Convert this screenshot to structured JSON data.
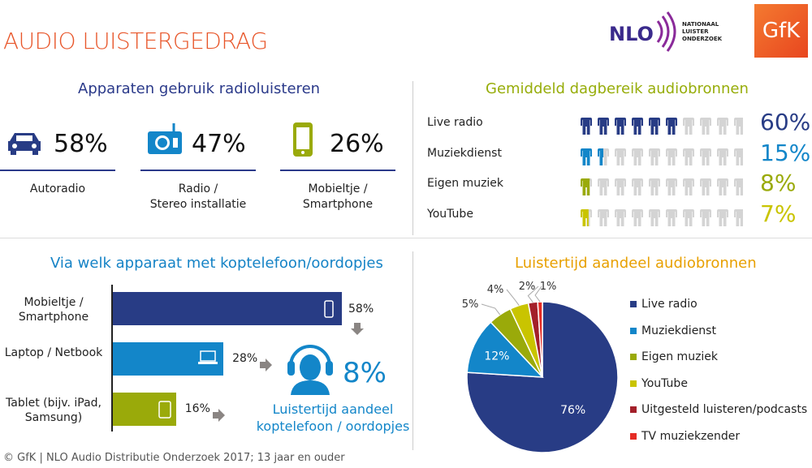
{
  "header": {
    "title": "AUDIO LUISTERGEDRAG",
    "logo_nlo": "NLO",
    "logo_nlo_sub": "NATIONAAL LUISTER ONDERZOEK",
    "logo_gfk": "GfK"
  },
  "colors": {
    "navy": "#283c85",
    "blue": "#1386c9",
    "olive": "#9aaa0a",
    "yellow": "#c9c400",
    "darkred": "#a3202a",
    "red": "#e52c25",
    "grey": "#d4d4d4",
    "orange": "#e8a000"
  },
  "devices": {
    "title": "Apparaten gebruik radioluisteren",
    "items": [
      {
        "icon": "car-icon",
        "value": "58%",
        "label1": "Autoradio",
        "label2": ""
      },
      {
        "icon": "radio-icon",
        "value": "47%",
        "label1": "Radio /",
        "label2": "Stereo installatie"
      },
      {
        "icon": "smartphone-icon",
        "value": "26%",
        "label1": "Mobieltje /",
        "label2": "Smartphone"
      }
    ]
  },
  "reach": {
    "title": "Gemiddeld dagbereik audiobronnen",
    "rows": [
      {
        "label": "Live radio",
        "value": "60%",
        "percent": 60,
        "color": "#283c85"
      },
      {
        "label": "Muziekdienst",
        "value": "15%",
        "percent": 15,
        "color": "#1386c9"
      },
      {
        "label": "Eigen muziek",
        "value": "8%",
        "percent": 8,
        "color": "#9aaa0a"
      },
      {
        "label": "YouTube",
        "value": "7%",
        "percent": 7,
        "color": "#c9c400"
      }
    ]
  },
  "chart_data": [
    {
      "type": "bar",
      "title": "Via welk apparaat met koptelefoon/oordopjes",
      "categories": [
        "Mobieltje / Smartphone",
        "Laptop / Netbook",
        "Tablet (bijv. iPad, Samsung)"
      ],
      "values": [
        58,
        28,
        16
      ],
      "value_labels": [
        "58%",
        "28%",
        "16%"
      ],
      "colors": [
        "#283c85",
        "#1386c9",
        "#9aaa0a"
      ],
      "orientation": "horizontal"
    },
    {
      "type": "pie",
      "title": "Luistertijd aandeel audiobronnen",
      "categories": [
        "Live radio",
        "Muziekdienst",
        "Eigen muziek",
        "YouTube",
        "Uitgesteld luisteren/podcasts",
        "TV muziekzender"
      ],
      "values": [
        76,
        12,
        5,
        4,
        2,
        1
      ],
      "value_labels": [
        "76%",
        "12%",
        "5%",
        "4%",
        "2%",
        "1%"
      ],
      "colors": [
        "#283c85",
        "#1386c9",
        "#9aaa0a",
        "#c9c400",
        "#a3202a",
        "#e52c25"
      ],
      "legend": "right"
    }
  ],
  "bars": {
    "labels": [
      [
        "Mobieltje /",
        "Smartphone"
      ],
      [
        "Laptop / Netbook",
        ""
      ],
      [
        "Tablet (bijv. iPad,",
        "Samsung)"
      ]
    ]
  },
  "headphone": {
    "value": "8%",
    "text1": "Luistertijd aandeel",
    "text2": "koptelefoon / oordopjes"
  },
  "footer": "© GfK | NLO Audio Distributie Onderzoek 2017;  13 jaar en ouder"
}
